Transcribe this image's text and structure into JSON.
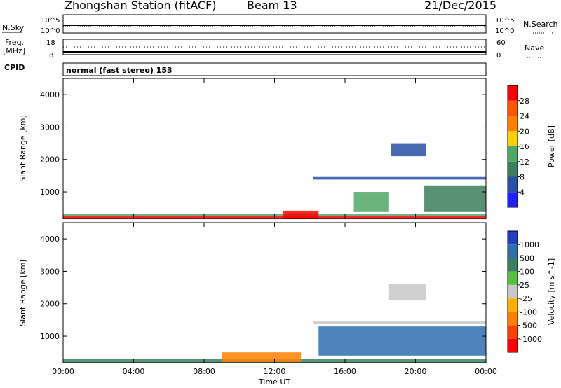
{
  "header": {
    "station_title": "Zhongshan Station (fitACF)",
    "beam_label": "Beam 13",
    "date": "21/Dec/2015"
  },
  "top_panel": {
    "left_label": "N.Sky",
    "right_label": "N.Search",
    "left_ticks": [
      "10^5",
      "10^0"
    ],
    "right_ticks": [
      "10^5",
      "10^0"
    ]
  },
  "freq_panel": {
    "left_label_1": "Freq.",
    "left_label_2": "[MHz]",
    "left_ticks": [
      "18",
      "8"
    ],
    "right_label": "Nave",
    "right_ticks": [
      "60",
      "0"
    ],
    "cpid_label": "CPID",
    "mode_text": "normal (fast stereo) 153"
  },
  "chart_data": [
    {
      "type": "heatmap",
      "ylabel": "Slant Range [km]",
      "ylim": [
        180,
        4500
      ],
      "yticks": [
        1000,
        2000,
        3000,
        4000
      ],
      "colorbar_label": "Power [dB]",
      "colorbar_ticks": [
        "4",
        "8",
        "12",
        "16",
        "20",
        "24",
        "28"
      ],
      "colorbar_colors": [
        "#2020ff",
        "#2a4fa6",
        "#3a7f5c",
        "#4fa866",
        "#ffd000",
        "#ff8000",
        "#ff5500",
        "#ff0000"
      ],
      "bands": [
        {
          "x0": 0,
          "x1": 24,
          "y0": 180,
          "y1": 260,
          "level": 7
        },
        {
          "x0": 0,
          "x1": 24,
          "y0": 260,
          "y1": 330,
          "level": 3
        },
        {
          "x0": 12.5,
          "x1": 14.5,
          "y0": 180,
          "y1": 420,
          "level": 7
        },
        {
          "x0": 16.5,
          "x1": 18.5,
          "y0": 400,
          "y1": 1000,
          "level": 3
        },
        {
          "x0": 18.6,
          "x1": 20.6,
          "y0": 2100,
          "y1": 2500,
          "level": 1
        },
        {
          "x0": 14.2,
          "x1": 24,
          "y0": 1380,
          "y1": 1460,
          "level": 1
        },
        {
          "x0": 20.5,
          "x1": 24,
          "y0": 400,
          "y1": 1200,
          "level": 2
        }
      ]
    },
    {
      "type": "heatmap",
      "xlabel": "Time UT",
      "ylabel": "Slant Range [km]",
      "ylim": [
        180,
        4500
      ],
      "yticks": [
        1000,
        2000,
        3000,
        4000
      ],
      "xticks": [
        "00:00",
        "04:00",
        "08:00",
        "12:00",
        "16:00",
        "20:00",
        "00:00"
      ],
      "colorbar_label": "Velocity [m s^-1]",
      "colorbar_ticks": [
        "1000",
        "500",
        "100",
        "25",
        "-25",
        "-100",
        "-500",
        "-1000"
      ],
      "colorbar_colors": [
        "#2040c0",
        "#2f6fb0",
        "#3a8060",
        "#55c040",
        "#c8c8c8",
        "#ffb000",
        "#ff8000",
        "#ff4000",
        "#ff0000"
      ],
      "bands": [
        {
          "x0": 0,
          "x1": 24,
          "y0": 180,
          "y1": 300,
          "level": 2
        },
        {
          "x0": 9,
          "x1": 13.5,
          "y0": 200,
          "y1": 500,
          "level": 6
        },
        {
          "x0": 18.5,
          "x1": 20.6,
          "y0": 2100,
          "y1": 2600,
          "level": 4
        },
        {
          "x0": 14.5,
          "x1": 24,
          "y0": 400,
          "y1": 1300,
          "level": 1
        },
        {
          "x0": 14.2,
          "x1": 24,
          "y0": 1380,
          "y1": 1460,
          "level": 4
        }
      ]
    }
  ]
}
